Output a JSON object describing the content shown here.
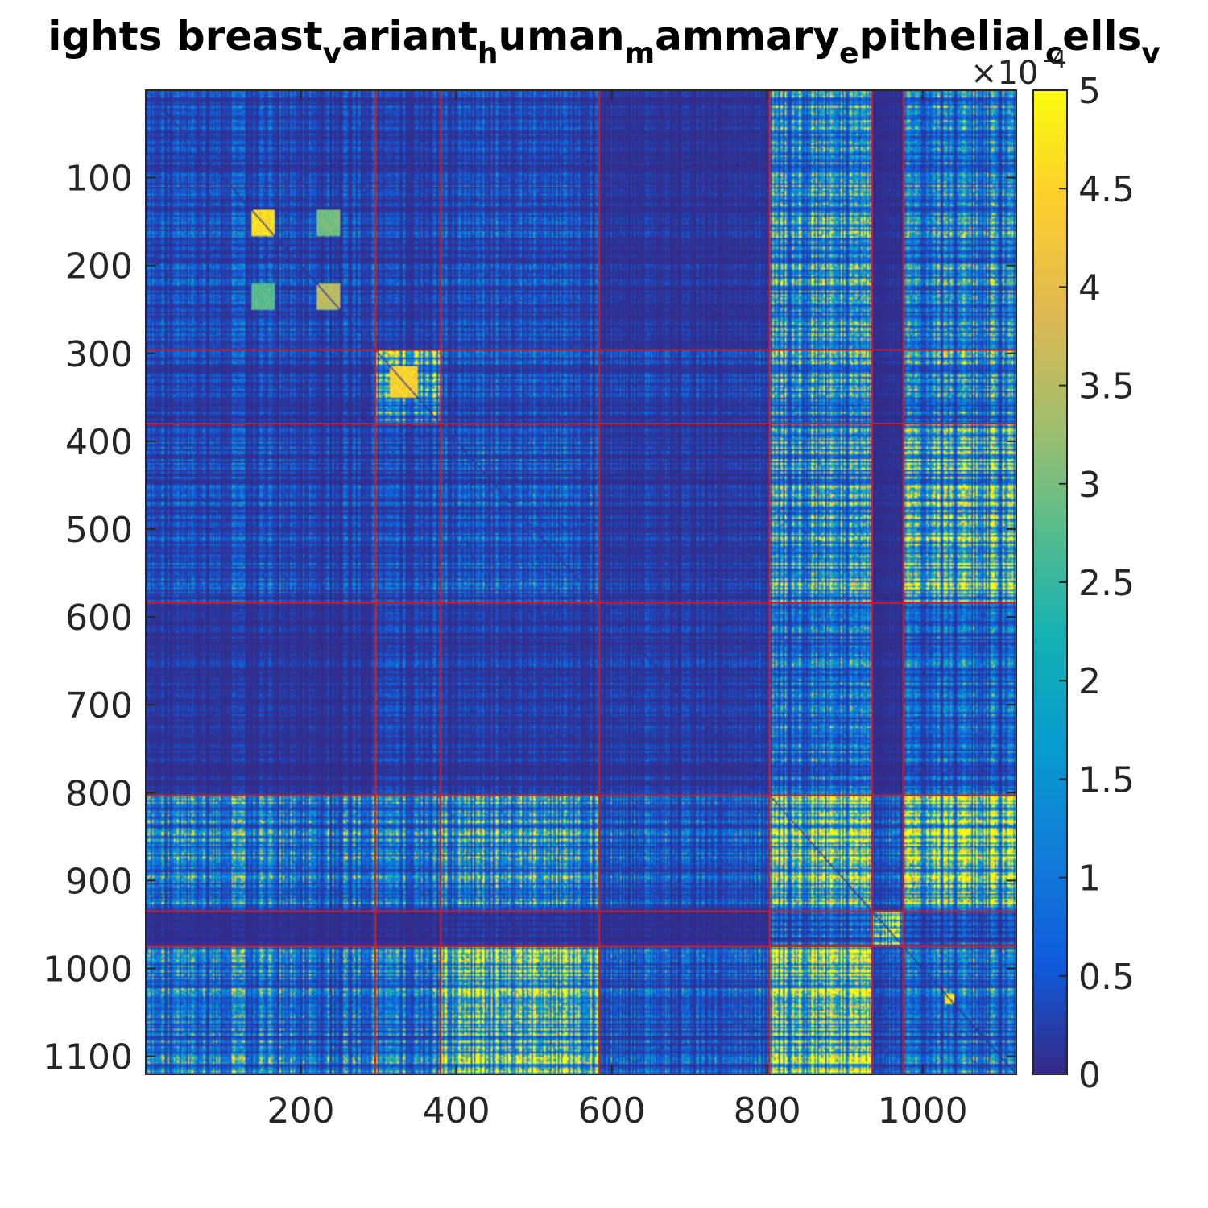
{
  "chart_data": {
    "type": "heatmap",
    "title_segments": [
      {
        "text": "ights breast",
        "sub": false
      },
      {
        "text": "v",
        "sub": true
      },
      {
        "text": "ariant",
        "sub": false
      },
      {
        "text": "h",
        "sub": true
      },
      {
        "text": "uman",
        "sub": false
      },
      {
        "text": "m",
        "sub": true
      },
      {
        "text": "ammary",
        "sub": false
      },
      {
        "text": "e",
        "sub": true
      },
      {
        "text": "pithelial",
        "sub": false
      },
      {
        "text": "c",
        "sub": true
      },
      {
        "text": "ells",
        "sub": false
      },
      {
        "text": "v",
        "sub": true
      }
    ],
    "n": 1120,
    "xlim": [
      1,
      1120
    ],
    "ylim": [
      1,
      1120
    ],
    "y_reversed": true,
    "xticks": [
      200,
      400,
      600,
      800,
      1000
    ],
    "xtick_labels": [
      "200",
      "400",
      "600",
      "800",
      "1000"
    ],
    "yticks": [
      100,
      200,
      300,
      400,
      500,
      600,
      700,
      800,
      900,
      1000,
      1100
    ],
    "ytick_labels": [
      "100",
      "200",
      "300",
      "400",
      "500",
      "600",
      "700",
      "800",
      "900",
      "1000",
      "1100"
    ],
    "colorbar": {
      "colormap": "parula",
      "clim": [
        0,
        0.0005
      ],
      "ticks": [
        0,
        0.5,
        1,
        1.5,
        2,
        2.5,
        3,
        3.5,
        4,
        4.5,
        5
      ],
      "tick_labels": [
        "0",
        "0.5",
        "1",
        "1.5",
        "2",
        "2.5",
        "3",
        "3.5",
        "4",
        "4.5",
        "5"
      ],
      "exponent_label": "×10",
      "exponent": "-4"
    },
    "block_boundaries": [
      1,
      296,
      380,
      584,
      803,
      935,
      975,
      1120
    ],
    "block_line_color": "#d7191c",
    "block_means_e4": [
      [
        0.6,
        0.4,
        0.6,
        0.2,
        2.2,
        0.1,
        1.6
      ],
      [
        0.4,
        2.6,
        0.6,
        0.4,
        2.0,
        0.1,
        1.6
      ],
      [
        0.6,
        0.6,
        0.8,
        0.3,
        2.4,
        0.1,
        3.2
      ],
      [
        0.2,
        0.4,
        0.3,
        0.3,
        1.2,
        0.1,
        0.9
      ],
      [
        1.8,
        1.6,
        2.4,
        0.9,
        4.2,
        0.8,
        4.5
      ],
      [
        0.1,
        0.1,
        0.2,
        0.1,
        0.9,
        5.0,
        0.6
      ],
      [
        1.6,
        1.6,
        4.2,
        0.9,
        4.6,
        0.6,
        1.2
      ]
    ],
    "bright_sub_blocks": [
      {
        "rows": [
          137,
          165
        ],
        "cols": [
          137,
          165
        ],
        "value_e4": 5.0
      },
      {
        "rows": [
          137,
          165
        ],
        "cols": [
          220,
          250
        ],
        "value_e4": 3.2
      },
      {
        "rows": [
          220,
          250
        ],
        "cols": [
          137,
          165
        ],
        "value_e4": 3.0
      },
      {
        "rows": [
          220,
          250
        ],
        "cols": [
          220,
          250
        ],
        "value_e4": 3.8
      },
      {
        "rows": [
          315,
          350
        ],
        "cols": [
          315,
          350
        ],
        "value_e4": 4.8
      },
      {
        "rows": [
          1028,
          1040
        ],
        "cols": [
          1028,
          1040
        ],
        "value_e4": 5.0
      }
    ]
  }
}
